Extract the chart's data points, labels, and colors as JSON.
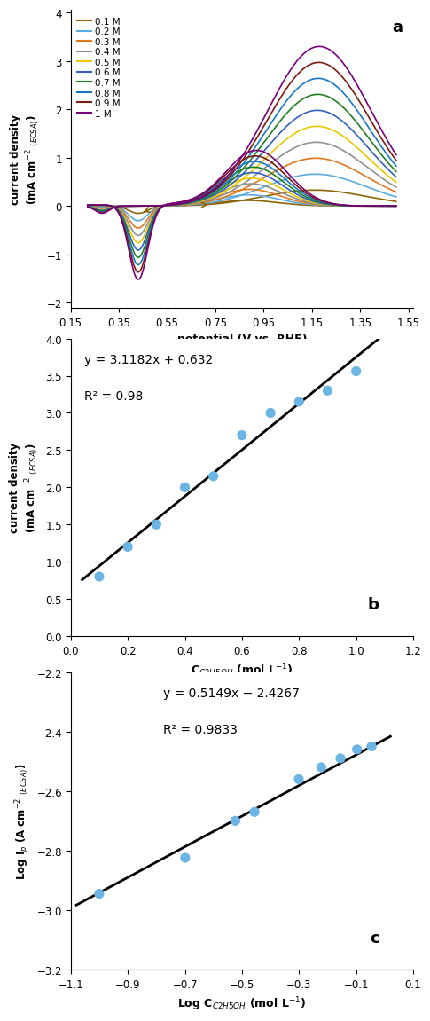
{
  "panel_a": {
    "title_label": "a",
    "xlim": [
      0.15,
      1.57
    ],
    "ylim": [
      -2.1,
      4.05
    ],
    "xlabel": "potential (V vs. RHE)",
    "ylabel_line1": "current density",
    "ylabel_line2": "(mA cm⁻² ₁ₑ₁ₐ₁)",
    "xticks": [
      0.15,
      0.35,
      0.55,
      0.75,
      0.95,
      1.15,
      1.35,
      1.55
    ],
    "yticks": [
      -2,
      -1,
      0,
      1,
      2,
      3,
      4
    ],
    "concentrations": [
      "0.1 M",
      "0.2 M",
      "0.3 M",
      "0.4 M",
      "0.5 M",
      "0.6 M",
      "0.7 M",
      "0.8 M",
      "0.9 M",
      "1 M"
    ],
    "colors": [
      "#8B6508",
      "#5AABDF",
      "#E07820",
      "#909090",
      "#E8C800",
      "#3060C0",
      "#208020",
      "#1878C8",
      "#7B1A10",
      "#780078"
    ],
    "conc_values": [
      0.1,
      0.2,
      0.3,
      0.4,
      0.5,
      0.6,
      0.7,
      0.8,
      0.9,
      1.0
    ]
  },
  "panel_b": {
    "title_label": "b",
    "xlim": [
      0,
      1.2
    ],
    "ylim": [
      0,
      4.0
    ],
    "xlabel": "C$_{C2H5OH}$ (mol L$^{-1}$)",
    "ylabel": "current density (mA cm$^{-2}$ $_{(ECSA)}$)",
    "xticks": [
      0,
      0.2,
      0.4,
      0.6,
      0.8,
      1.0,
      1.2
    ],
    "yticks": [
      0,
      0.5,
      1.0,
      1.5,
      2.0,
      2.5,
      3.0,
      3.5,
      4.0
    ],
    "scatter_x": [
      0.1,
      0.2,
      0.3,
      0.4,
      0.5,
      0.6,
      0.7,
      0.8,
      0.9,
      1.0
    ],
    "scatter_y": [
      0.8,
      1.2,
      1.5,
      2.0,
      2.15,
      2.7,
      3.0,
      3.15,
      3.3,
      3.56
    ],
    "fit_slope": 3.1182,
    "fit_intercept": 0.632,
    "equation_text": "y = 3.1182x + 0.632",
    "r2_text": "R² = 0.98",
    "scatter_color": "#6CB4E4",
    "line_color": "black"
  },
  "panel_c": {
    "title_label": "c",
    "xlim": [
      -1.1,
      0.1
    ],
    "ylim": [
      -3.2,
      -2.2
    ],
    "xlabel": "Log C$_{C2H5OH}$ (mol L$^{-1}$)",
    "ylabel": "Log I$_p$ (A cm$^{-2}$ $_{(ECSA)}$)",
    "xticks": [
      -1.1,
      -0.9,
      -0.7,
      -0.5,
      -0.3,
      -0.1,
      0.1
    ],
    "yticks": [
      -3.2,
      -3.0,
      -2.8,
      -2.6,
      -2.4,
      -2.2
    ],
    "scatter_x": [
      -1.0,
      -0.699,
      -0.523,
      -0.456,
      -0.301,
      -0.222,
      -0.155,
      -0.097,
      -0.046
    ],
    "scatter_y": [
      -2.945,
      -2.824,
      -2.7,
      -2.67,
      -2.56,
      -2.52,
      -2.49,
      -2.46,
      -2.45
    ],
    "fit_slope": 0.5149,
    "fit_intercept": -2.4267,
    "equation_text": "y = 0.5149x − 2.4267",
    "r2_text": "R² = 0.9833",
    "scatter_color": "#6CB4E4",
    "line_color": "black"
  }
}
